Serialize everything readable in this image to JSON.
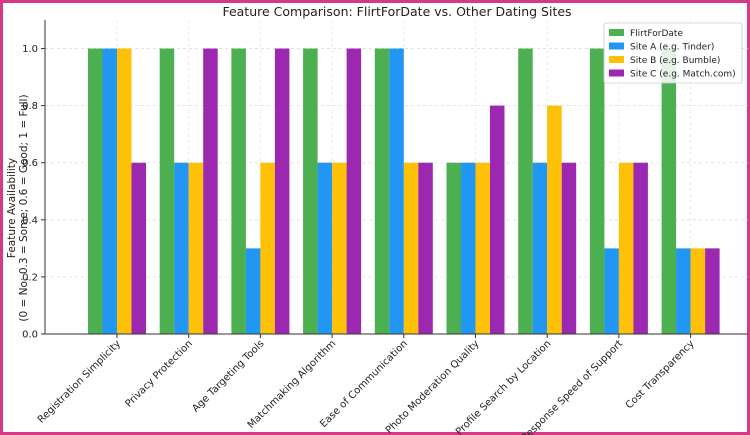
{
  "chart_data": {
    "type": "bar",
    "title": "Feature Comparison: FlirtForDate vs. Other Dating Sites",
    "xlabel": "",
    "ylabel_line1": "Feature Availability",
    "ylabel_line2": "(0 = No; 0.3 = Some; 0.6 = Good; 1 = Full)",
    "ylim": [
      0,
      1.1
    ],
    "yticks": [
      "0.0",
      "0.2",
      "0.4",
      "0.6",
      "0.8",
      "1.0"
    ],
    "grid": true,
    "legend_position": "top-right",
    "categories": [
      "Registration Simplicity",
      "Privacy Protection",
      "Age Targeting Tools",
      "Matchmaking Algorithm",
      "Ease of Communication",
      "Photo Moderation Quality",
      "Profile Search by Location",
      "Response Speed of Support",
      "Cost Transparency"
    ],
    "series": [
      {
        "name": "FlirtForDate",
        "color": "#4caf50",
        "values": [
          1.0,
          1.0,
          1.0,
          1.0,
          1.0,
          0.6,
          1.0,
          1.0,
          1.0
        ]
      },
      {
        "name": "Site A (e.g. Tinder)",
        "color": "#2196f3",
        "values": [
          1.0,
          0.6,
          0.3,
          0.6,
          1.0,
          0.6,
          0.6,
          0.3,
          0.3
        ]
      },
      {
        "name": "Site B (e.g. Bumble)",
        "color": "#ffc107",
        "values": [
          1.0,
          0.6,
          0.6,
          0.6,
          0.6,
          0.6,
          0.8,
          0.6,
          0.3
        ]
      },
      {
        "name": "Site C (e.g. Match.com)",
        "color": "#9c27b0",
        "values": [
          0.6,
          1.0,
          1.0,
          1.0,
          0.6,
          0.8,
          0.6,
          0.6,
          0.3
        ]
      }
    ]
  }
}
